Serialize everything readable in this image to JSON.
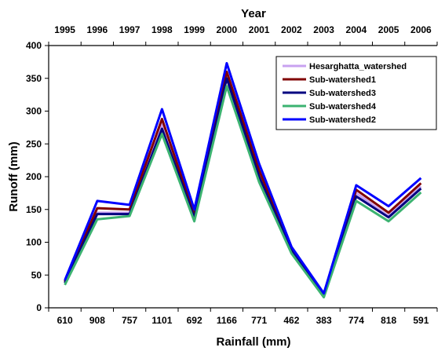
{
  "chart_data": {
    "type": "line",
    "title": "",
    "xlabel": "Rainfall (mm)",
    "ylabel": "Runoff (mm)",
    "x2label": "Year",
    "categories": [
      "610",
      "908",
      "757",
      "1101",
      "692",
      "1166",
      "771",
      "462",
      "383",
      "774",
      "818",
      "591"
    ],
    "top_categories": [
      "1995",
      "1996",
      "1997",
      "1998",
      "1999",
      "2000",
      "2001",
      "2002",
      "2003",
      "2004",
      "2005",
      "2006"
    ],
    "ylim": [
      0,
      400
    ],
    "yticks": [
      0,
      50,
      100,
      150,
      200,
      250,
      300,
      350,
      400
    ],
    "grid": false,
    "legend_position": "top-right",
    "series": [
      {
        "name": "Hesarghatta_watershed",
        "color": "#c8a2f0",
        "values": [
          38,
          145,
          145,
          280,
          138,
          355,
          205,
          88,
          18,
          175,
          140,
          185
        ]
      },
      {
        "name": "Sub-watershed1",
        "color": "#800000",
        "values": [
          40,
          152,
          150,
          288,
          142,
          360,
          210,
          90,
          20,
          180,
          145,
          190
        ]
      },
      {
        "name": "Sub-watershed3",
        "color": "#000080",
        "values": [
          38,
          143,
          143,
          273,
          137,
          350,
          200,
          87,
          19,
          170,
          138,
          182
        ]
      },
      {
        "name": "Sub-watershed4",
        "color": "#3cb371",
        "values": [
          35,
          135,
          140,
          265,
          132,
          338,
          192,
          83,
          16,
          163,
          132,
          176
        ]
      },
      {
        "name": "Sub-watershed2",
        "color": "#0000ff",
        "values": [
          42,
          163,
          157,
          303,
          150,
          373,
          220,
          93,
          22,
          187,
          155,
          198
        ]
      }
    ]
  }
}
